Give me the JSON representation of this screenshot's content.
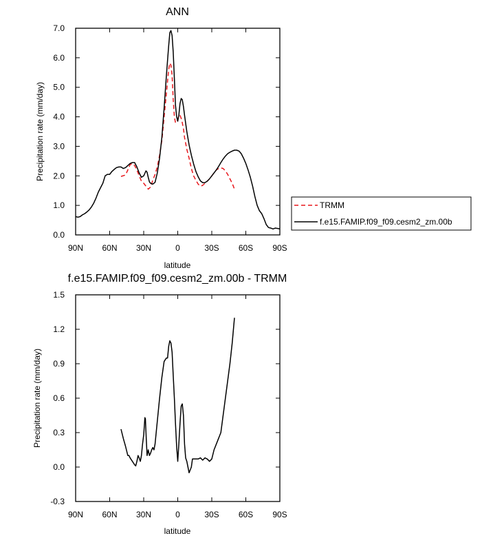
{
  "chart_data": [
    {
      "type": "line",
      "title": "ANN",
      "xlabel": "latitude",
      "ylabel": "Precipitation rate (mm/day)",
      "xlim": [
        90,
        -90
      ],
      "ylim": [
        0,
        7
      ],
      "x_ticks": [
        90,
        60,
        30,
        0,
        -30,
        -60,
        -90
      ],
      "x_tick_labels": [
        "90N",
        "60N",
        "30N",
        "0",
        "30S",
        "60S",
        "90S"
      ],
      "y_ticks": [
        0,
        1,
        2,
        3,
        4,
        5,
        6,
        7
      ],
      "y_tick_labels": [
        "0.0",
        "1.0",
        "2.0",
        "3.0",
        "4.0",
        "5.0",
        "6.0",
        "7.0"
      ],
      "legend": {
        "placement": "right, outside plot"
      },
      "series": [
        {
          "name": "TRMM",
          "color": "#e8161b",
          "dash": "dashed",
          "x": [
            50,
            46,
            44,
            42,
            40,
            38,
            36,
            34,
            32,
            30,
            28,
            26,
            24,
            22,
            20,
            18,
            16,
            14,
            12,
            10,
            8,
            7,
            6,
            5,
            4,
            3,
            2,
            1,
            0,
            -1,
            -2,
            -3,
            -4,
            -5,
            -6,
            -8,
            -10,
            -12,
            -14,
            -16,
            -18,
            -20,
            -22,
            -24,
            -26,
            -28,
            -30,
            -32,
            -34,
            -36,
            -38,
            -40,
            -42,
            -44,
            -46,
            -48,
            -50
          ],
          "y": [
            1.98,
            2.03,
            2.2,
            2.38,
            2.42,
            2.35,
            2.2,
            2.0,
            1.82,
            1.75,
            1.65,
            1.55,
            1.62,
            1.85,
            2.05,
            2.3,
            2.7,
            3.2,
            4.0,
            4.8,
            5.6,
            5.82,
            5.75,
            5.4,
            4.6,
            4.0,
            3.8,
            3.82,
            3.92,
            4.05,
            4.05,
            3.95,
            3.8,
            3.6,
            3.3,
            2.9,
            2.6,
            2.25,
            2.0,
            1.85,
            1.72,
            1.65,
            1.68,
            1.75,
            1.82,
            1.9,
            2.0,
            2.1,
            2.2,
            2.25,
            2.27,
            2.25,
            2.17,
            2.05,
            1.9,
            1.75,
            1.55
          ]
        },
        {
          "name": "f.e15.FAMIP.f09_f09.cesm2_zm.00b",
          "color": "#000000",
          "dash": "solid",
          "x": [
            90,
            88,
            86,
            84,
            82,
            80,
            78,
            76,
            74,
            72,
            70,
            68,
            66,
            64,
            62,
            60,
            58,
            56,
            54,
            52,
            50,
            48,
            46,
            44,
            42,
            40,
            38,
            36,
            34,
            32,
            30,
            28,
            27,
            26,
            25,
            24,
            22,
            20,
            18,
            16,
            14,
            12,
            10,
            8,
            7,
            6,
            5,
            4,
            3,
            2,
            1,
            0,
            -1,
            -2,
            -3,
            -4,
            -5,
            -6,
            -8,
            -10,
            -12,
            -14,
            -16,
            -18,
            -20,
            -22,
            -24,
            -26,
            -28,
            -30,
            -32,
            -34,
            -36,
            -38,
            -40,
            -42,
            -44,
            -46,
            -48,
            -50,
            -52,
            -54,
            -56,
            -58,
            -60,
            -62,
            -64,
            -66,
            -68,
            -70,
            -72,
            -74,
            -76,
            -78,
            -80,
            -82,
            -84,
            -86,
            -88,
            -90
          ],
          "y": [
            0.62,
            0.6,
            0.62,
            0.68,
            0.72,
            0.78,
            0.85,
            0.95,
            1.08,
            1.25,
            1.45,
            1.6,
            1.75,
            2.0,
            2.05,
            2.05,
            2.15,
            2.22,
            2.28,
            2.3,
            2.3,
            2.25,
            2.28,
            2.35,
            2.42,
            2.45,
            2.45,
            2.3,
            2.1,
            1.95,
            2.0,
            2.17,
            2.12,
            1.95,
            1.8,
            1.75,
            1.72,
            1.78,
            2.1,
            2.6,
            3.3,
            4.3,
            5.4,
            6.4,
            6.85,
            6.92,
            6.75,
            6.2,
            5.3,
            4.4,
            4.0,
            3.85,
            4.05,
            4.45,
            4.62,
            4.58,
            4.35,
            4.05,
            3.5,
            3.05,
            2.7,
            2.4,
            2.15,
            1.97,
            1.83,
            1.77,
            1.77,
            1.82,
            1.9,
            2.0,
            2.1,
            2.2,
            2.32,
            2.45,
            2.57,
            2.67,
            2.75,
            2.8,
            2.84,
            2.87,
            2.87,
            2.84,
            2.75,
            2.6,
            2.42,
            2.2,
            1.95,
            1.65,
            1.3,
            1.0,
            0.82,
            0.72,
            0.55,
            0.35,
            0.25,
            0.23,
            0.2,
            0.23,
            0.22,
            0.2
          ]
        }
      ]
    },
    {
      "type": "line",
      "title": "f.e15.FAMIP.f09_f09.cesm2_zm.00b - TRMM",
      "xlabel": "latitude",
      "ylabel": "Precipitation rate (mm/day)",
      "xlim": [
        90,
        -90
      ],
      "ylim": [
        -0.3,
        1.5
      ],
      "x_ticks": [
        90,
        60,
        30,
        0,
        -30,
        -60,
        -90
      ],
      "x_tick_labels": [
        "90N",
        "60N",
        "30N",
        "0",
        "30S",
        "60S",
        "90S"
      ],
      "y_ticks": [
        -0.3,
        0,
        0.3,
        0.6,
        0.9,
        1.2,
        1.5
      ],
      "y_tick_labels": [
        "-0.3",
        "0.0",
        "0.3",
        "0.6",
        "0.9",
        "1.2",
        "1.5"
      ],
      "series": [
        {
          "color": "#000000",
          "dash": "solid",
          "x": [
            50,
            48,
            46,
            44,
            43,
            42,
            40,
            38,
            37,
            36,
            35,
            34,
            33,
            32,
            31,
            30,
            29,
            28.5,
            28,
            27,
            26,
            25,
            24,
            23,
            22,
            21,
            20,
            18,
            16,
            14,
            12,
            10,
            9,
            8,
            7,
            6,
            5,
            4,
            3,
            2,
            1,
            0,
            -1,
            -2,
            -3,
            -4,
            -5,
            -6,
            -7,
            -8,
            -10,
            -12,
            -13,
            -14,
            -16,
            -18,
            -20,
            -22,
            -24,
            -26,
            -28,
            -30,
            -32,
            -34,
            -36,
            -38,
            -40,
            -42,
            -44,
            -46,
            -48,
            -50
          ],
          "y": [
            0.33,
            0.25,
            0.18,
            0.1,
            0.1,
            0.08,
            0.05,
            0.02,
            0.01,
            0.05,
            0.1,
            0.08,
            0.05,
            0.1,
            0.2,
            0.28,
            0.43,
            0.42,
            0.3,
            0.1,
            0.15,
            0.1,
            0.12,
            0.15,
            0.17,
            0.15,
            0.2,
            0.4,
            0.6,
            0.78,
            0.92,
            0.95,
            0.95,
            1.05,
            1.1,
            1.08,
            1.0,
            0.8,
            0.6,
            0.38,
            0.18,
            0.05,
            0.2,
            0.38,
            0.53,
            0.55,
            0.45,
            0.2,
            0.08,
            0.05,
            -0.05,
            0.0,
            0.07,
            0.07,
            0.07,
            0.07,
            0.08,
            0.06,
            0.08,
            0.07,
            0.05,
            0.07,
            0.15,
            0.2,
            0.25,
            0.3,
            0.45,
            0.6,
            0.75,
            0.9,
            1.08,
            1.3
          ]
        }
      ]
    }
  ]
}
